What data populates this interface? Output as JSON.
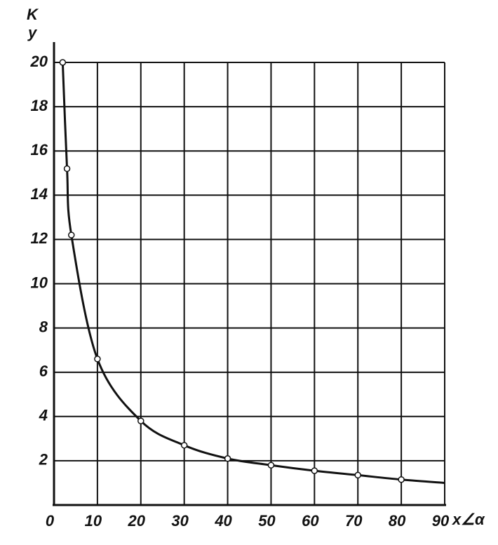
{
  "chart_data": {
    "type": "line",
    "y_label": "K",
    "y_label_sub": "y",
    "x_label": "x∠α",
    "xlim": [
      0,
      90
    ],
    "xticks": [
      0,
      10,
      20,
      30,
      40,
      50,
      60,
      70,
      80,
      90
    ],
    "ylim": [
      0,
      20
    ],
    "yticks": [
      2,
      4,
      6,
      8,
      10,
      12,
      14,
      16,
      18,
      20
    ],
    "grid": true,
    "series": [
      {
        "color": "#111111",
        "marker": false,
        "x": [
          2,
          3,
          4,
          10,
          20,
          30,
          40,
          50,
          60,
          70,
          80,
          90
        ],
        "values": [
          20,
          15.2,
          12.2,
          6.6,
          3.8,
          2.7,
          2.1,
          1.8,
          1.55,
          1.35,
          1.15,
          1.0
        ]
      },
      {
        "color": "#111111",
        "marker": true,
        "x": [
          2,
          3,
          4,
          10,
          20,
          30,
          40,
          50,
          60,
          70,
          80
        ],
        "values": [
          20,
          15.2,
          12.2,
          6.6,
          3.8,
          2.7,
          2.1,
          1.8,
          1.55,
          1.35,
          1.15
        ]
      }
    ]
  }
}
